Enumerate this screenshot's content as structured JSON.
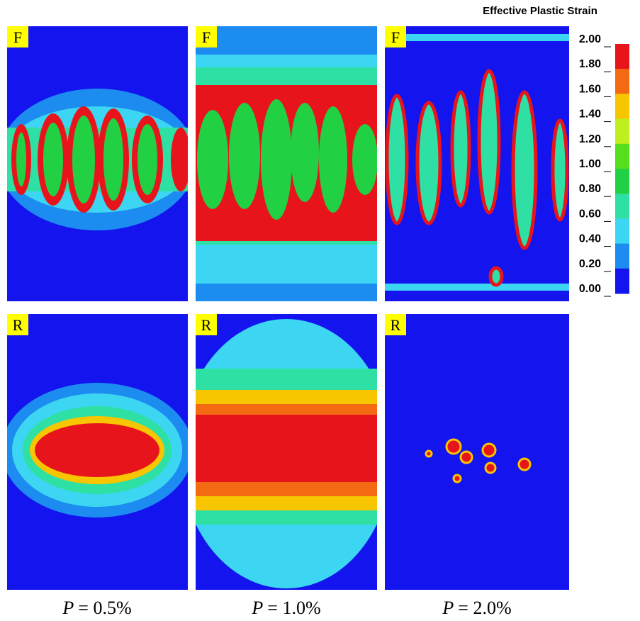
{
  "colorbar": {
    "title": "Effective Plastic Strain",
    "ticks": [
      "2.00",
      "1.80",
      "1.60",
      "1.40",
      "1.20",
      "1.00",
      "0.80",
      "0.60",
      "0.40",
      "0.20",
      "0.00"
    ],
    "colors": [
      "#e8141c",
      "#f36a12",
      "#f7c600",
      "#bff01e",
      "#55de1c",
      "#22d044",
      "#2ee0a4",
      "#3cd6f2",
      "#1c8cf0",
      "#1414ee"
    ]
  },
  "panels": {
    "rows": [
      "F",
      "R"
    ]
  },
  "captions": [
    {
      "variable": "P",
      "text": "= 0.5%"
    },
    {
      "variable": "P",
      "text": "= 1.0%"
    },
    {
      "variable": "P",
      "text": "= 2.0%"
    }
  ]
}
